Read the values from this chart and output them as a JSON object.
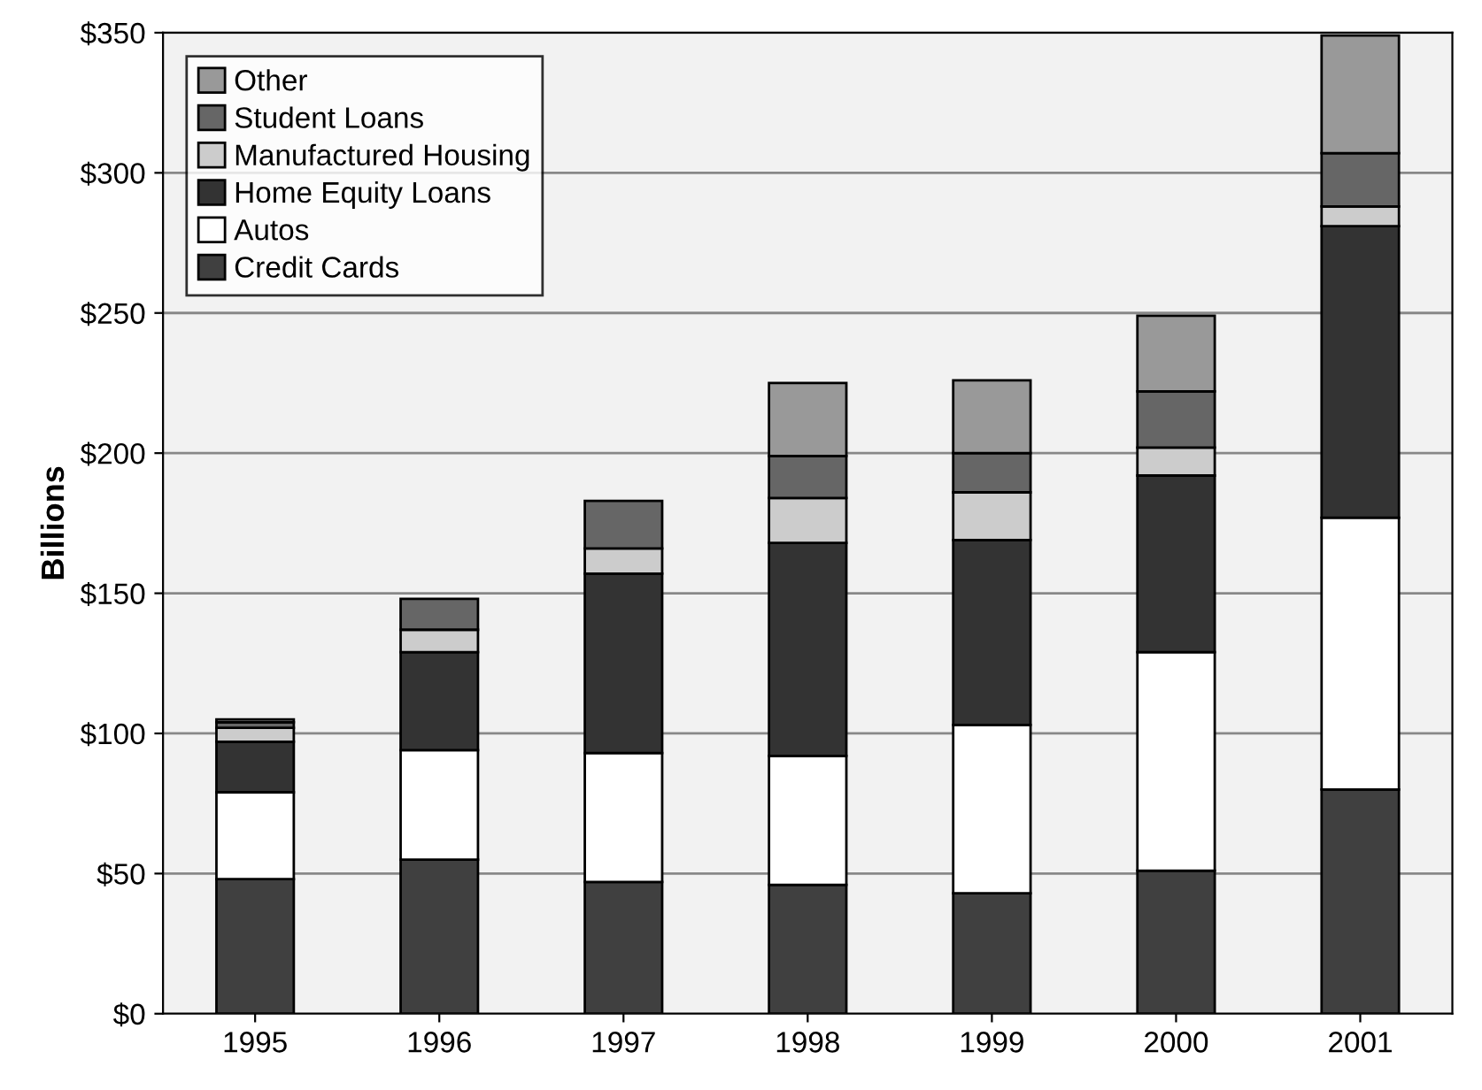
{
  "chart_data": {
    "type": "bar",
    "stacked": true,
    "ylabel": "Billions",
    "categories": [
      "1995",
      "1996",
      "1997",
      "1998",
      "1999",
      "2000",
      "2001"
    ],
    "series": [
      {
        "name": "Credit Cards",
        "color": "#404040",
        "values": [
          48,
          55,
          47,
          46,
          43,
          51,
          80
        ]
      },
      {
        "name": "Autos",
        "color": "#ffffff",
        "values": [
          31,
          39,
          46,
          46,
          60,
          78,
          97
        ]
      },
      {
        "name": "Home Equity Loans",
        "color": "#333333",
        "values": [
          18,
          35,
          64,
          76,
          66,
          63,
          104
        ]
      },
      {
        "name": "Manufactured Housing",
        "color": "#cccccc",
        "values": [
          5,
          8,
          9,
          16,
          17,
          10,
          7
        ]
      },
      {
        "name": "Student Loans",
        "color": "#666666",
        "values": [
          2,
          11,
          17,
          15,
          14,
          20,
          19
        ]
      },
      {
        "name": "Other",
        "color": "#999999",
        "values": [
          1,
          null,
          null,
          26,
          26,
          27,
          42
        ]
      }
    ],
    "ylim": [
      0,
      350
    ],
    "yticks": [
      {
        "value": 0,
        "label": "$0"
      },
      {
        "value": 50,
        "label": "$50"
      },
      {
        "value": 100,
        "label": "$100"
      },
      {
        "value": 150,
        "label": "$150"
      },
      {
        "value": 200,
        "label": "$200"
      },
      {
        "value": 250,
        "label": "$250"
      },
      {
        "value": 300,
        "label": "$300"
      },
      {
        "value": 350,
        "label": "$350"
      }
    ],
    "grid": "y",
    "legend": "top left"
  }
}
